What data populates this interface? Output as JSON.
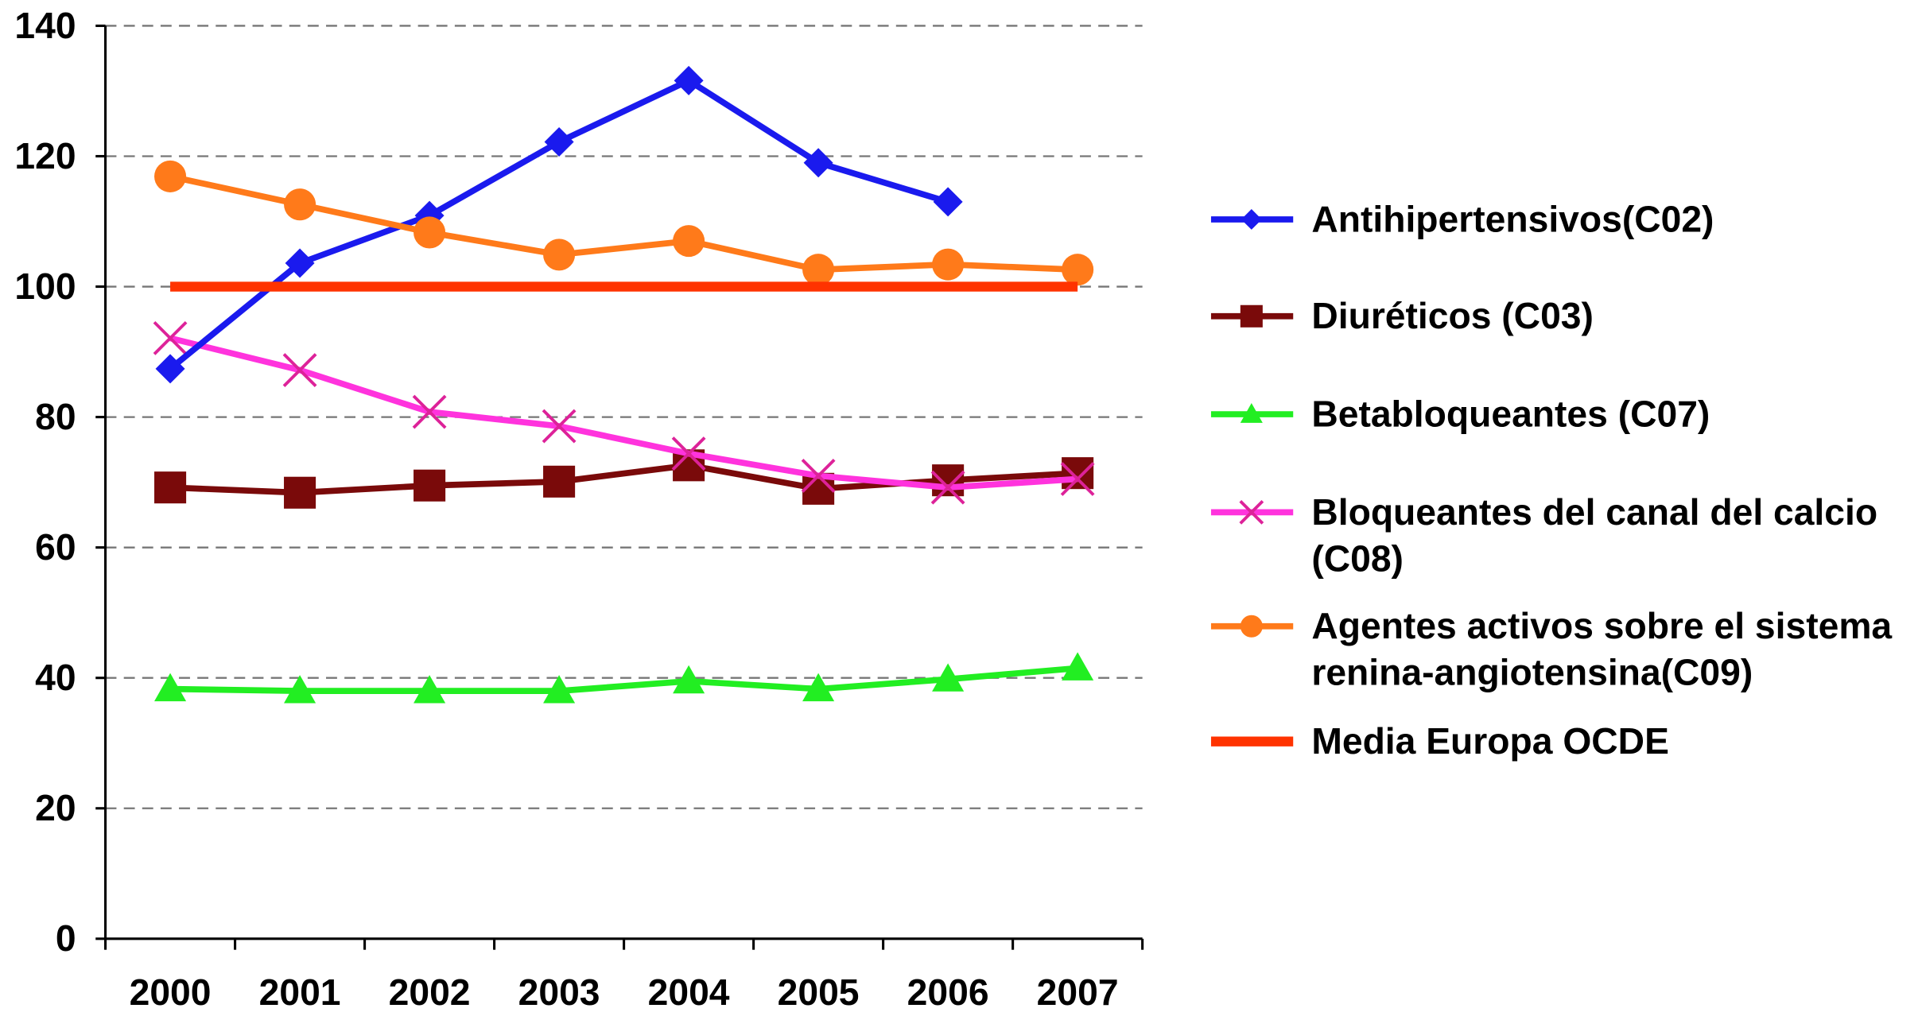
{
  "chart_data": {
    "type": "line",
    "title": "",
    "xlabel": "",
    "ylabel": "",
    "ylim": [
      0,
      140
    ],
    "yticks": [
      0,
      20,
      40,
      60,
      80,
      100,
      120,
      140
    ],
    "categories": [
      "2000",
      "2001",
      "2002",
      "2003",
      "2004",
      "2005",
      "2006",
      "2007"
    ],
    "grid": "horizontal dashed",
    "legend_position": "right",
    "series": [
      {
        "name": "Antihipertensivos(C02)",
        "name_lines": [
          "Antihipertensivos(C02)"
        ],
        "color": "#1a1aee",
        "marker": "diamond",
        "values": [
          87.4,
          103.6,
          110.9,
          122.2,
          131.6,
          119.0,
          113.0,
          null
        ]
      },
      {
        "name": "Diuréticos (C03)",
        "name_lines": [
          "Diuréticos (C03)"
        ],
        "color": "#7a0a0a",
        "marker": "square",
        "values": [
          69.2,
          68.4,
          69.5,
          70.1,
          72.6,
          69.0,
          70.3,
          71.4
        ]
      },
      {
        "name": "Betabloqueantes (C07)",
        "name_lines": [
          "Betabloqueantes (C07)"
        ],
        "color": "#22ee22",
        "marker": "triangle",
        "values": [
          38.3,
          38.0,
          38.0,
          38.0,
          39.5,
          38.3,
          39.8,
          41.5
        ]
      },
      {
        "name": "Bloqueantes del canal del calcio (C08)",
        "name_lines": [
          "Bloqueantes del canal del calcio",
          "(C08)"
        ],
        "color": "#ff33dd",
        "marker": "x",
        "values": [
          92.1,
          87.2,
          80.8,
          78.6,
          74.4,
          71.0,
          69.2,
          70.5
        ]
      },
      {
        "name": "Agentes activos sobre el sistema renina-angiotensina(C09)",
        "name_lines": [
          "Agentes activos sobre el sistema",
          "renina-angiotensina(C09)"
        ],
        "color": "#ff7a1a",
        "marker": "circle",
        "values": [
          116.9,
          112.6,
          108.3,
          104.9,
          107.0,
          102.6,
          103.4,
          102.6
        ]
      },
      {
        "name": "Media Europa OCDE",
        "name_lines": [
          "Media Europa OCDE"
        ],
        "color": "#ff3300",
        "marker": "none",
        "values": [
          100,
          100,
          100,
          100,
          100,
          100,
          100,
          100
        ]
      }
    ]
  }
}
